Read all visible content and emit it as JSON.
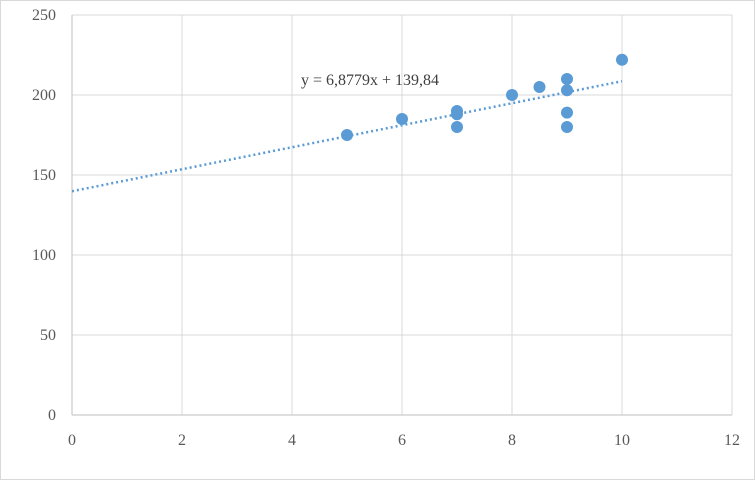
{
  "chart_data": {
    "type": "scatter",
    "title": "",
    "xlabel": "",
    "ylabel": "",
    "xlim": [
      0,
      12
    ],
    "ylim": [
      0,
      250
    ],
    "x_ticks": [
      0,
      2,
      4,
      6,
      8,
      10,
      12
    ],
    "y_ticks": [
      0,
      50,
      100,
      150,
      200,
      250
    ],
    "grid": true,
    "legend": "none",
    "series": [
      {
        "color": "#5b9bd5",
        "points": [
          {
            "x": 5,
            "y": 175
          },
          {
            "x": 6,
            "y": 185
          },
          {
            "x": 7,
            "y": 190
          },
          {
            "x": 7,
            "y": 188
          },
          {
            "x": 7,
            "y": 180
          },
          {
            "x": 8,
            "y": 200
          },
          {
            "x": 8.5,
            "y": 205
          },
          {
            "x": 9,
            "y": 210
          },
          {
            "x": 9,
            "y": 203
          },
          {
            "x": 9,
            "y": 189
          },
          {
            "x": 9,
            "y": 180
          },
          {
            "x": 10,
            "y": 222
          }
        ]
      }
    ],
    "trendline": {
      "type": "linear",
      "slope": 6.8779,
      "intercept": 139.84,
      "x_range": [
        0,
        10
      ],
      "style": "dotted",
      "color": "#5b9bd5",
      "equation_label": "y = 6,8779x + 139,84"
    }
  }
}
